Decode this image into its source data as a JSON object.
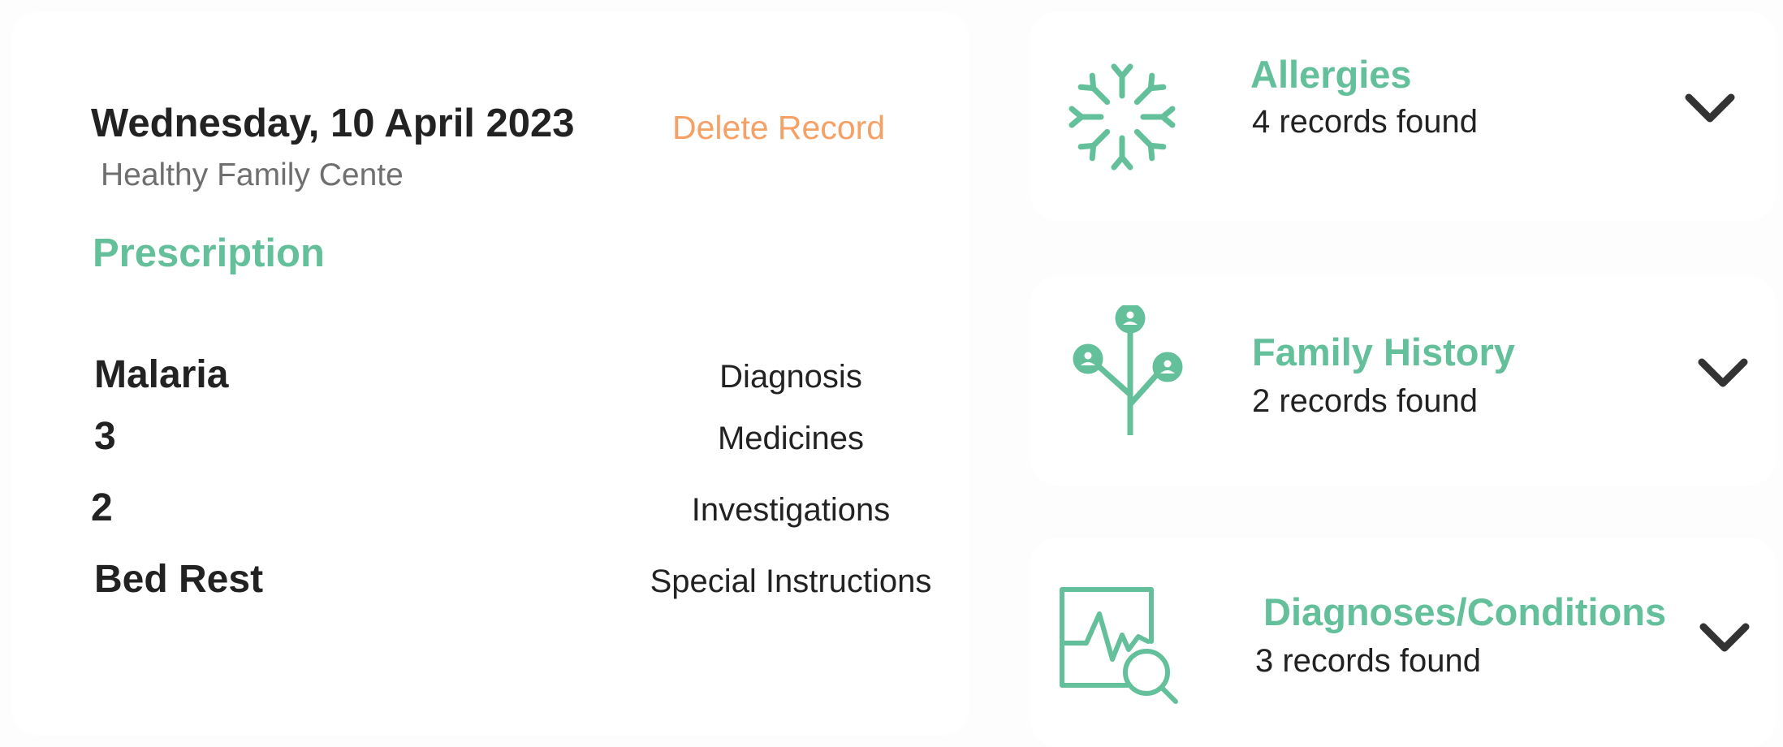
{
  "record": {
    "date": "Wednesday, 10 April 2023",
    "delete_label": "Delete Record",
    "center": "Healthy Family Cente",
    "section_title": "Prescription",
    "rows": [
      {
        "value": "Malaria",
        "label": "Diagnosis"
      },
      {
        "value": "3",
        "label": "Medicines"
      },
      {
        "value": "2",
        "label": "Investigations"
      },
      {
        "value": "Bed Rest",
        "label": "Special Instructions"
      }
    ]
  },
  "categories": [
    {
      "title": "Allergies",
      "count": "4 records found",
      "icon": "allergy-icon"
    },
    {
      "title": "Family History",
      "count": "2 records found",
      "icon": "family-tree-icon"
    },
    {
      "title": "Diagnoses/Conditions",
      "count": "3 records found",
      "icon": "diagnosis-chart-icon"
    }
  ],
  "colors": {
    "accent": "#63c09b",
    "delete": "#f5a065",
    "text": "#222222",
    "muted": "#6f6f6f"
  }
}
